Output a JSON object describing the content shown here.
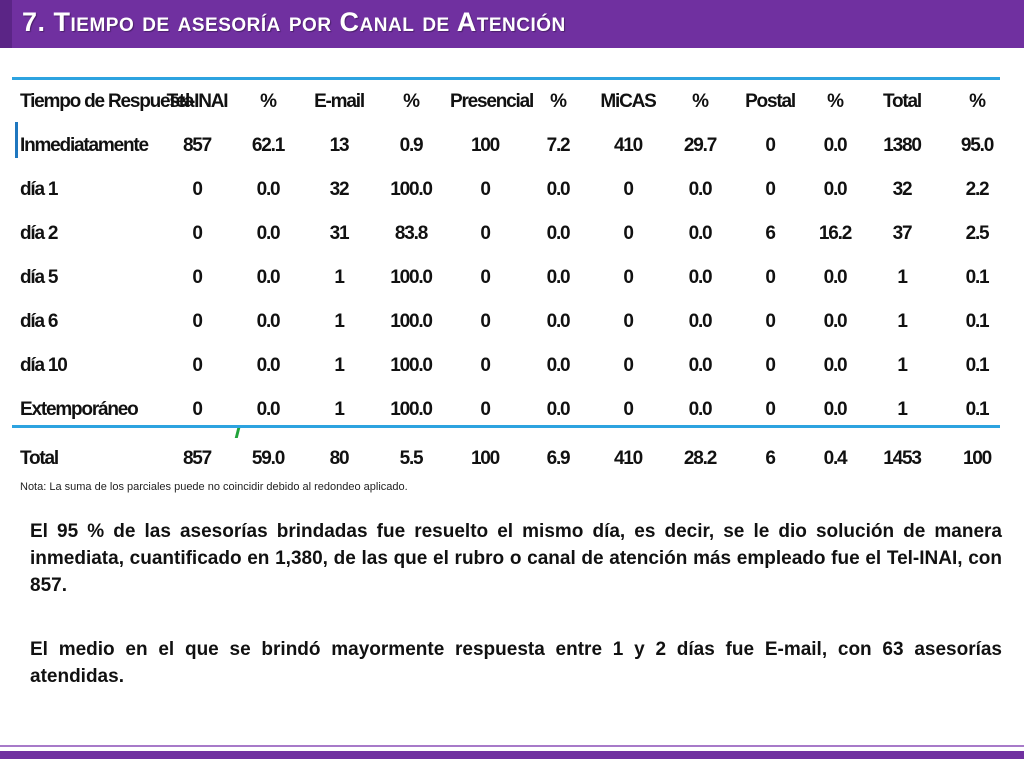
{
  "title": "7. Tiempo de asesoría por Canal de Atención",
  "colors": {
    "title_bar": "#7030a0",
    "table_rule": "#2da3e0",
    "text": "#111111"
  },
  "table": {
    "headers": [
      "Tiempo de Respuesta",
      "Tel-INAI",
      "%",
      "E-mail",
      "%",
      "Presencial",
      "%",
      "MiCAS",
      "%",
      "Postal",
      "%",
      "Total",
      "%"
    ],
    "rows": [
      [
        "Inmediatamente",
        "857",
        "62.1",
        "13",
        "0.9",
        "100",
        "7.2",
        "410",
        "29.7",
        "0",
        "0.0",
        "1380",
        "95.0"
      ],
      [
        "día 1",
        "0",
        "0.0",
        "32",
        "100.0",
        "0",
        "0.0",
        "0",
        "0.0",
        "0",
        "0.0",
        "32",
        "2.2"
      ],
      [
        "día 2",
        "0",
        "0.0",
        "31",
        "83.8",
        "0",
        "0.0",
        "0",
        "0.0",
        "6",
        "16.2",
        "37",
        "2.5"
      ],
      [
        "día 5",
        "0",
        "0.0",
        "1",
        "100.0",
        "0",
        "0.0",
        "0",
        "0.0",
        "0",
        "0.0",
        "1",
        "0.1"
      ],
      [
        "día 6",
        "0",
        "0.0",
        "1",
        "100.0",
        "0",
        "0.0",
        "0",
        "0.0",
        "0",
        "0.0",
        "1",
        "0.1"
      ],
      [
        "día 10",
        "0",
        "0.0",
        "1",
        "100.0",
        "0",
        "0.0",
        "0",
        "0.0",
        "0",
        "0.0",
        "1",
        "0.1"
      ],
      [
        "Extemporáneo",
        "0",
        "0.0",
        "1",
        "100.0",
        "0",
        "0.0",
        "0",
        "0.0",
        "0",
        "0.0",
        "1",
        "0.1"
      ]
    ],
    "total_row": [
      "Total",
      "857",
      "59.0",
      "80",
      "5.5",
      "100",
      "6.9",
      "410",
      "28.2",
      "6",
      "0.4",
      "1453",
      "100"
    ]
  },
  "note": "Nota: La suma de los parciales puede no coincidir debido al redondeo aplicado.",
  "paragraphs": [
    "El 95 % de las asesorías brindadas fue resuelto el mismo día, es decir, se le dio solución de manera inmediata, cuantificado en 1,380, de las que el rubro o canal de atención más empleado fue el Tel-INAI, con 857.",
    "El medio en el que se brindó mayormente respuesta entre 1 y 2 días fue E-mail, con 63 asesorías atendidas."
  ]
}
